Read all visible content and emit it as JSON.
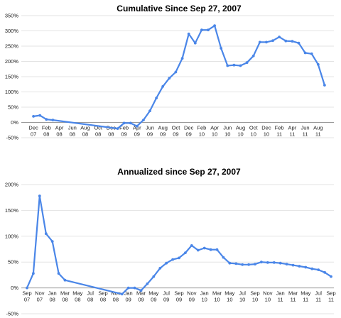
{
  "chart_data": [
    {
      "type": "line",
      "title": "Cumulative Since Sep 27, 2007",
      "xlabel": "",
      "ylabel": "",
      "ylim": [
        -50,
        350
      ],
      "yticks": [
        -50,
        0,
        50,
        100,
        150,
        200,
        250,
        300,
        350
      ],
      "ytick_labels": [
        "-50%",
        "0%",
        "50%",
        "100%",
        "150%",
        "200%",
        "250%",
        "300%",
        "350%"
      ],
      "grid": true,
      "color": "#4a86e8",
      "xlim": [
        0,
        47
      ],
      "x_ticks": [
        {
          "x": 1,
          "label": [
            "Dec",
            "07"
          ]
        },
        {
          "x": 3,
          "label": [
            "Feb",
            "08"
          ]
        },
        {
          "x": 5,
          "label": [
            "Apr",
            "08"
          ]
        },
        {
          "x": 7,
          "label": [
            "Jun",
            "08"
          ]
        },
        {
          "x": 9,
          "label": [
            "Aug",
            "08"
          ]
        },
        {
          "x": 11,
          "label": [
            "Oct",
            "08"
          ]
        },
        {
          "x": 13,
          "label": [
            "Dec",
            "08"
          ]
        },
        {
          "x": 15,
          "label": [
            "Feb",
            "09"
          ]
        },
        {
          "x": 17,
          "label": [
            "Apr",
            "09"
          ]
        },
        {
          "x": 19,
          "label": [
            "Jun",
            "09"
          ]
        },
        {
          "x": 21,
          "label": [
            "Aug",
            "09"
          ]
        },
        {
          "x": 23,
          "label": [
            "Oct",
            "09"
          ]
        },
        {
          "x": 25,
          "label": [
            "Dec",
            "09"
          ]
        },
        {
          "x": 27,
          "label": [
            "Feb",
            "10"
          ]
        },
        {
          "x": 29,
          "label": [
            "Apr",
            "10"
          ]
        },
        {
          "x": 31,
          "label": [
            "Jun",
            "10"
          ]
        },
        {
          "x": 33,
          "label": [
            "Aug",
            "10"
          ]
        },
        {
          "x": 35,
          "label": [
            "Oct",
            "10"
          ]
        },
        {
          "x": 37,
          "label": [
            "Dec",
            "10"
          ]
        },
        {
          "x": 39,
          "label": [
            "Feb",
            "11"
          ]
        },
        {
          "x": 41,
          "label": [
            "Apr",
            "11"
          ]
        },
        {
          "x": 43,
          "label": [
            "Jun",
            "11"
          ]
        },
        {
          "x": 45,
          "label": [
            "Aug",
            "11"
          ]
        }
      ],
      "series": [
        {
          "x": [
            1,
            2,
            3,
            4,
            14,
            15,
            16,
            17,
            18,
            19,
            20,
            21,
            22,
            23,
            24,
            25,
            26,
            27,
            28,
            29,
            30,
            31,
            32,
            33,
            34,
            35,
            36,
            37,
            38,
            39,
            40,
            41,
            42,
            43,
            44,
            45,
            46
          ],
          "y": [
            20,
            23,
            10,
            8,
            -20,
            -2,
            -2,
            -12,
            8,
            38,
            80,
            118,
            145,
            165,
            210,
            290,
            260,
            303,
            303,
            317,
            243,
            186,
            188,
            186,
            196,
            218,
            263,
            263,
            268,
            280,
            267,
            266,
            260,
            228,
            225,
            190,
            122
          ]
        }
      ]
    },
    {
      "type": "line",
      "title": "Annualized since Sep 27, 2007",
      "xlabel": "",
      "ylabel": "",
      "ylim": [
        -50,
        200
      ],
      "yticks": [
        -50,
        0,
        50,
        100,
        150,
        200
      ],
      "ytick_labels": [
        "-50%",
        "0%",
        "50%",
        "100%",
        "150%",
        "200%"
      ],
      "grid": true,
      "color": "#4a86e8",
      "xlim": [
        0,
        48
      ],
      "x_ticks": [
        {
          "x": 0,
          "label": [
            "Sep",
            "07"
          ]
        },
        {
          "x": 2,
          "label": [
            "Nov",
            "07"
          ]
        },
        {
          "x": 4,
          "label": [
            "Jan",
            "08"
          ]
        },
        {
          "x": 6,
          "label": [
            "Mar",
            "08"
          ]
        },
        {
          "x": 8,
          "label": [
            "May",
            "08"
          ]
        },
        {
          "x": 10,
          "label": [
            "Jul",
            "08"
          ]
        },
        {
          "x": 12,
          "label": [
            "Sep",
            "08"
          ]
        },
        {
          "x": 14,
          "label": [
            "Nov",
            "08"
          ]
        },
        {
          "x": 16,
          "label": [
            "Jan",
            "09"
          ]
        },
        {
          "x": 18,
          "label": [
            "Mar",
            "09"
          ]
        },
        {
          "x": 20,
          "label": [
            "May",
            "09"
          ]
        },
        {
          "x": 22,
          "label": [
            "Jul",
            "09"
          ]
        },
        {
          "x": 24,
          "label": [
            "Sep",
            "09"
          ]
        },
        {
          "x": 26,
          "label": [
            "Nov",
            "09"
          ]
        },
        {
          "x": 28,
          "label": [
            "Jan",
            "10"
          ]
        },
        {
          "x": 30,
          "label": [
            "Mar",
            "10"
          ]
        },
        {
          "x": 32,
          "label": [
            "May",
            "10"
          ]
        },
        {
          "x": 34,
          "label": [
            "Jul",
            "10"
          ]
        },
        {
          "x": 36,
          "label": [
            "Sep",
            "10"
          ]
        },
        {
          "x": 38,
          "label": [
            "Nov",
            "10"
          ]
        },
        {
          "x": 40,
          "label": [
            "Jan",
            "11"
          ]
        },
        {
          "x": 42,
          "label": [
            "Mar",
            "11"
          ]
        },
        {
          "x": 44,
          "label": [
            "May",
            "11"
          ]
        },
        {
          "x": 46,
          "label": [
            "Jul",
            "11"
          ]
        },
        {
          "x": 48,
          "label": [
            "Sep",
            "11"
          ]
        }
      ],
      "series": [
        {
          "x": [
            0,
            1,
            2,
            3,
            4,
            5,
            6,
            15,
            16,
            17,
            18,
            19,
            20,
            21,
            22,
            23,
            24,
            25,
            26,
            27,
            28,
            29,
            30,
            31,
            32,
            33,
            34,
            35,
            36,
            37,
            38,
            39,
            40,
            41,
            42,
            43,
            44,
            45,
            46,
            47,
            48
          ],
          "y": [
            0,
            28,
            178,
            105,
            90,
            28,
            15,
            -12,
            0,
            0,
            -5,
            8,
            22,
            38,
            48,
            55,
            58,
            68,
            82,
            73,
            77,
            74,
            74,
            59,
            48,
            47,
            45,
            45,
            46,
            50,
            49,
            49,
            48,
            46,
            44,
            42,
            40,
            37,
            35,
            30,
            22
          ]
        }
      ]
    }
  ]
}
